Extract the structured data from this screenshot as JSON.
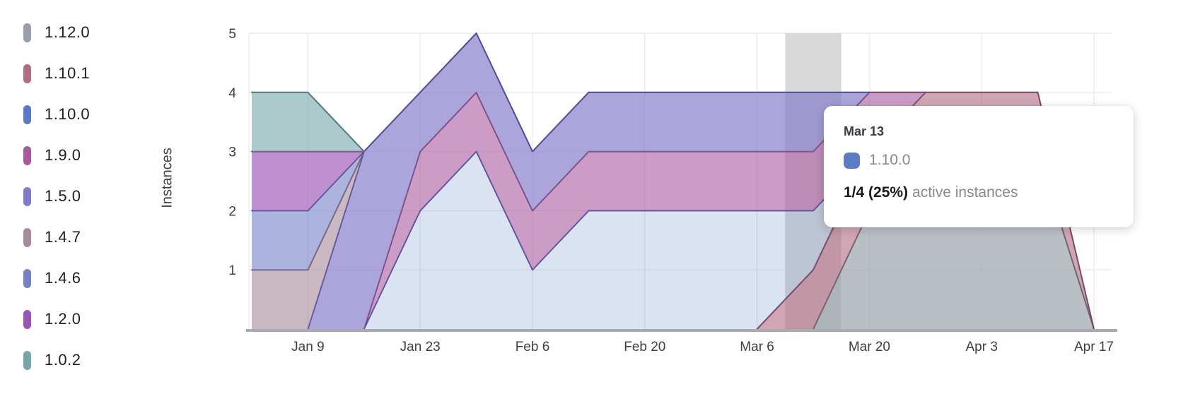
{
  "y_axis": {
    "label": "Instances",
    "ticks": [
      1,
      2,
      3,
      4,
      5
    ]
  },
  "tooltip": {
    "date": "Mar 13",
    "series": "1.10.0",
    "swatch_color": "#5b7cc4",
    "value": "1/4 (25%)",
    "suffix": "active instances"
  },
  "theme": {
    "gridline_color": "#ebebec",
    "axis_line_color": "#a7abb0",
    "hover_band_color": "#d9d9d9",
    "tick_text_color": "#3c4043"
  },
  "chart_data": {
    "type": "area",
    "stacked": true,
    "title": "",
    "xlabel": "",
    "ylabel": "Instances",
    "ylim": [
      0,
      5
    ],
    "yticks": [
      1,
      2,
      3,
      4,
      5
    ],
    "grid": true,
    "legend_position": "left",
    "hover_x": "Mar 13",
    "x": [
      "Jan 2",
      "Jan 9",
      "Jan 16",
      "Jan 23",
      "Jan 30",
      "Feb 6",
      "Feb 13",
      "Feb 20",
      "Feb 27",
      "Mar 6",
      "Mar 13",
      "Mar 20",
      "Mar 27",
      "Apr 3",
      "Apr 10",
      "Apr 17"
    ],
    "x_tick_labels": [
      "Jan 9",
      "Jan 23",
      "Feb 6",
      "Feb 20",
      "Mar 6",
      "Mar 20",
      "Apr 3",
      "Apr 17"
    ],
    "series": [
      {
        "name": "1.12.0",
        "color": "#99a0ab",
        "stroke": "#5a616c",
        "fill_alpha": 0.68,
        "values": [
          0,
          0,
          0,
          0,
          0,
          0,
          0,
          0,
          0,
          0,
          0,
          2,
          3,
          3,
          3,
          0
        ]
      },
      {
        "name": "1.10.1",
        "color": "#b16b82",
        "stroke": "#7c4763",
        "fill_alpha": 0.6,
        "values": [
          0,
          0,
          0,
          0,
          0,
          0,
          0,
          0,
          0,
          0,
          1,
          1,
          1,
          1,
          1,
          0
        ]
      },
      {
        "name": "1.10.0",
        "color": "#5b79c6",
        "stroke": "#43549a",
        "fill_alpha": 0.22,
        "values": [
          0,
          0,
          0,
          2,
          3,
          1,
          2,
          2,
          2,
          2,
          1,
          0,
          0,
          0,
          0,
          0
        ]
      },
      {
        "name": "1.9.0",
        "color": "#a85a9e",
        "stroke": "#7b3e72",
        "fill_alpha": 0.6,
        "values": [
          0,
          0,
          0,
          1,
          1,
          1,
          1,
          1,
          1,
          1,
          1,
          1,
          0,
          0,
          0,
          0
        ]
      },
      {
        "name": "1.5.0",
        "color": "#837bca",
        "stroke": "#4f4b96",
        "fill_alpha": 0.68,
        "values": [
          0,
          0,
          3,
          1,
          1,
          1,
          1,
          1,
          1,
          1,
          1,
          0,
          0,
          0,
          0,
          0
        ]
      },
      {
        "name": "1.4.7",
        "color": "#a78b9b",
        "stroke": "#7b5e70",
        "fill_alpha": 0.6,
        "values": [
          1,
          1,
          0,
          0,
          0,
          0,
          0,
          0,
          0,
          0,
          0,
          0,
          0,
          0,
          0,
          0
        ]
      },
      {
        "name": "1.4.6",
        "color": "#7580c7",
        "stroke": "#4d59a1",
        "fill_alpha": 0.6,
        "values": [
          1,
          1,
          0,
          0,
          0,
          0,
          0,
          0,
          0,
          0,
          0,
          0,
          0,
          0,
          0,
          0
        ]
      },
      {
        "name": "1.2.0",
        "color": "#9c54b6",
        "stroke": "#713c87",
        "fill_alpha": 0.65,
        "values": [
          1,
          1,
          0,
          0,
          0,
          0,
          0,
          0,
          0,
          0,
          0,
          0,
          0,
          0,
          0,
          0
        ]
      },
      {
        "name": "1.0.2",
        "color": "#75a6a9",
        "stroke": "#4e7a7e",
        "fill_alpha": 0.6,
        "values": [
          1,
          1,
          0,
          0,
          0,
          0,
          0,
          0,
          0,
          0,
          0,
          0,
          0,
          0,
          0,
          0
        ]
      }
    ]
  }
}
